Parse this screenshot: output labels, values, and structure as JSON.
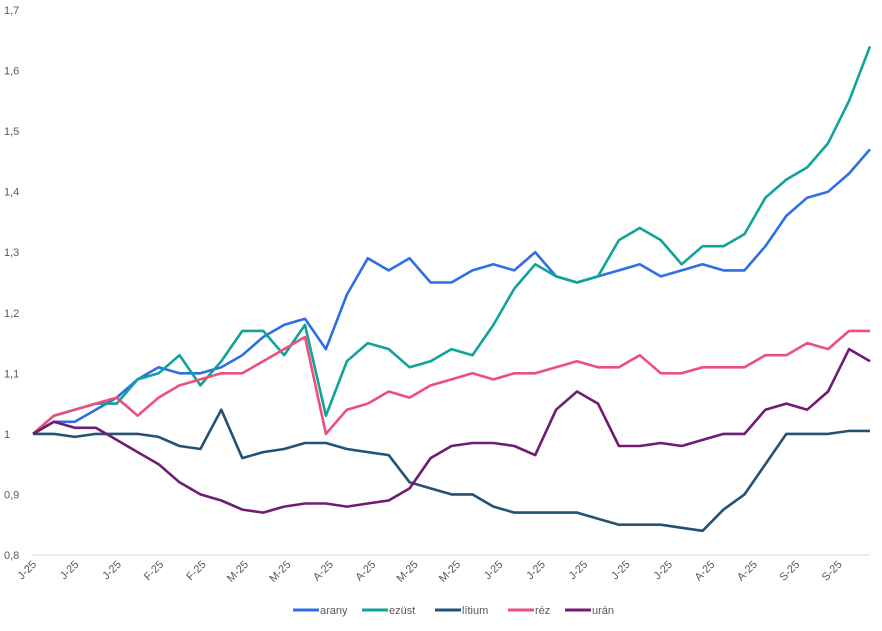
{
  "chart_data": {
    "type": "line",
    "title": "",
    "xlabel": "",
    "ylabel": "",
    "ylim": [
      0.8,
      1.7
    ],
    "yticks": [
      0.8,
      0.9,
      1.0,
      1.1,
      1.2,
      1.3,
      1.4,
      1.5,
      1.6,
      1.7
    ],
    "ytick_labels": [
      "0,8",
      "0,9",
      "1",
      "1,1",
      "1,2",
      "1,3",
      "1,4",
      "1,5",
      "1,6",
      "1,7"
    ],
    "xtick_labels": [
      "J-25",
      "J-25",
      "J-25",
      "F-25",
      "F-25",
      "M-25",
      "M-25",
      "A-25",
      "A-25",
      "M-25",
      "M-25",
      "J-25",
      "J-25",
      "J-25",
      "J-25",
      "J-25",
      "A-25",
      "A-25",
      "S-25",
      "S-25"
    ],
    "grid": false,
    "legend": "bottom",
    "series": [
      {
        "name": "arany",
        "color": "#2F6FE4",
        "values": [
          1.0,
          1.02,
          1.02,
          1.04,
          1.06,
          1.09,
          1.11,
          1.1,
          1.1,
          1.11,
          1.13,
          1.16,
          1.18,
          1.19,
          1.14,
          1.23,
          1.29,
          1.27,
          1.29,
          1.25,
          1.25,
          1.27,
          1.28,
          1.27,
          1.3,
          1.26,
          1.25,
          1.26,
          1.27,
          1.28,
          1.26,
          1.27,
          1.28,
          1.27,
          1.27,
          1.31,
          1.36,
          1.39,
          1.4,
          1.43,
          1.47
        ]
      },
      {
        "name": "ezüst",
        "color": "#0FA39A",
        "values": [
          1.0,
          1.03,
          1.04,
          1.05,
          1.05,
          1.09,
          1.1,
          1.13,
          1.08,
          1.12,
          1.17,
          1.17,
          1.13,
          1.18,
          1.03,
          1.12,
          1.15,
          1.14,
          1.11,
          1.12,
          1.14,
          1.13,
          1.18,
          1.24,
          1.28,
          1.26,
          1.25,
          1.26,
          1.32,
          1.34,
          1.32,
          1.28,
          1.31,
          1.31,
          1.33,
          1.39,
          1.42,
          1.44,
          1.48,
          1.55,
          1.64
        ]
      },
      {
        "name": "lítium",
        "color": "#235275",
        "values": [
          1.0,
          1.0,
          0.995,
          1.0,
          1.0,
          1.0,
          0.995,
          0.98,
          0.975,
          1.04,
          0.96,
          0.97,
          0.975,
          0.985,
          0.985,
          0.975,
          0.97,
          0.965,
          0.92,
          0.91,
          0.9,
          0.9,
          0.88,
          0.87,
          0.87,
          0.87,
          0.87,
          0.86,
          0.85,
          0.85,
          0.85,
          0.845,
          0.84,
          0.875,
          0.9,
          0.95,
          1.0,
          1.0,
          1.0,
          1.005,
          1.005
        ]
      },
      {
        "name": "réz",
        "color": "#EC4F7A",
        "values": [
          1.0,
          1.03,
          1.04,
          1.05,
          1.06,
          1.03,
          1.06,
          1.08,
          1.09,
          1.1,
          1.1,
          1.12,
          1.14,
          1.16,
          1.0,
          1.04,
          1.05,
          1.07,
          1.06,
          1.08,
          1.09,
          1.1,
          1.09,
          1.1,
          1.1,
          1.11,
          1.12,
          1.11,
          1.11,
          1.13,
          1.1,
          1.1,
          1.11,
          1.11,
          1.11,
          1.13,
          1.13,
          1.15,
          1.14,
          1.17,
          1.17
        ]
      },
      {
        "name": "urán",
        "color": "#701B74",
        "values": [
          1.0,
          1.02,
          1.01,
          1.01,
          0.99,
          0.97,
          0.95,
          0.92,
          0.9,
          0.89,
          0.875,
          0.87,
          0.88,
          0.885,
          0.885,
          0.88,
          0.885,
          0.89,
          0.91,
          0.96,
          0.98,
          0.985,
          0.985,
          0.98,
          0.965,
          1.04,
          1.07,
          1.05,
          0.98,
          0.98,
          0.985,
          0.98,
          0.99,
          1.0,
          1.0,
          1.04,
          1.05,
          1.04,
          1.07,
          1.14,
          1.12
        ]
      }
    ]
  }
}
